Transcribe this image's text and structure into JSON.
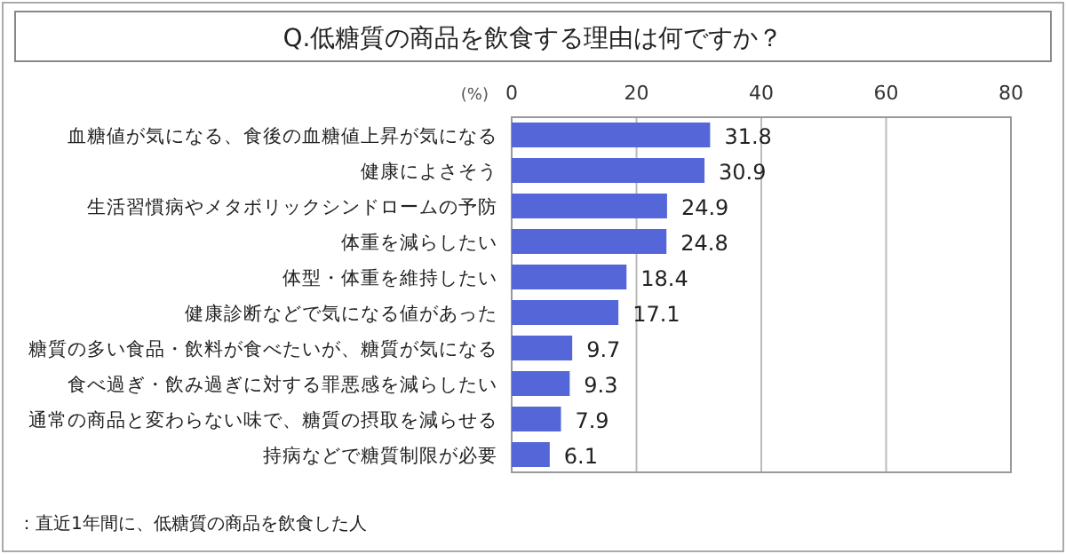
{
  "chart_data": {
    "type": "bar",
    "orientation": "horizontal",
    "title": "Q.低糖質の商品を飲食する理由は何ですか？",
    "xlabel": "(%)",
    "categories": [
      "血糖値が気になる、食後の血糖値上昇が気になる",
      "健康によさそう",
      "生活習慣病やメタボリックシンドロームの予防",
      "体重を減らしたい",
      "体型・体重を維持したい",
      "健康診断などで気になる値があった",
      "糖質の多い食品・飲料が食べたいが、糖質が気になる",
      "食べ過ぎ・飲み過ぎに対する罪悪感を減らしたい",
      "通常の商品と変わらない味で、糖質の摂取を減らせる",
      "持病などで糖質制限が必要"
    ],
    "values": [
      31.8,
      30.9,
      24.9,
      24.8,
      18.4,
      17.1,
      9.7,
      9.3,
      7.9,
      6.1
    ],
    "color": "#5567d8",
    "xlim": [
      0,
      80
    ],
    "xticks": [
      0,
      20,
      40,
      60,
      80
    ],
    "grid": "x",
    "data_labels": true,
    "annotations": [
      "：直近1年間に、低糖質の商品を飲食した人"
    ]
  }
}
